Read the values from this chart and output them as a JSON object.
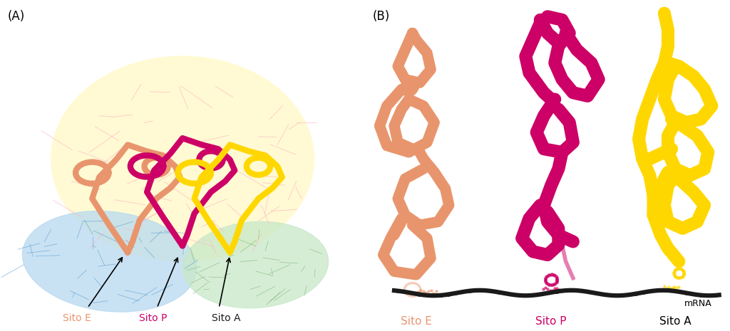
{
  "panel_A_label": "(A)",
  "panel_B_label": "(B)",
  "label_sito_E": "Sito E",
  "label_sito_P": "Sito P",
  "label_sito_A": "Sito A",
  "label_mRNA": "mRNA",
  "color_sito_E": "#E8956D",
  "color_sito_P": "#CC0066",
  "color_sito_A_text": "#000000",
  "color_sito_A_struct": "#FFD700",
  "color_mRNA": "#1a1a1a",
  "color_ribosome_large": "#FFFACD",
  "color_ribosome_small_left": "#ADD8E6",
  "color_ribosome_small_right": "#90EE90",
  "color_ribosome_pink": "#FFB6C1",
  "background_color": "#ffffff",
  "font_size_panel": 12,
  "font_size_label": 11
}
